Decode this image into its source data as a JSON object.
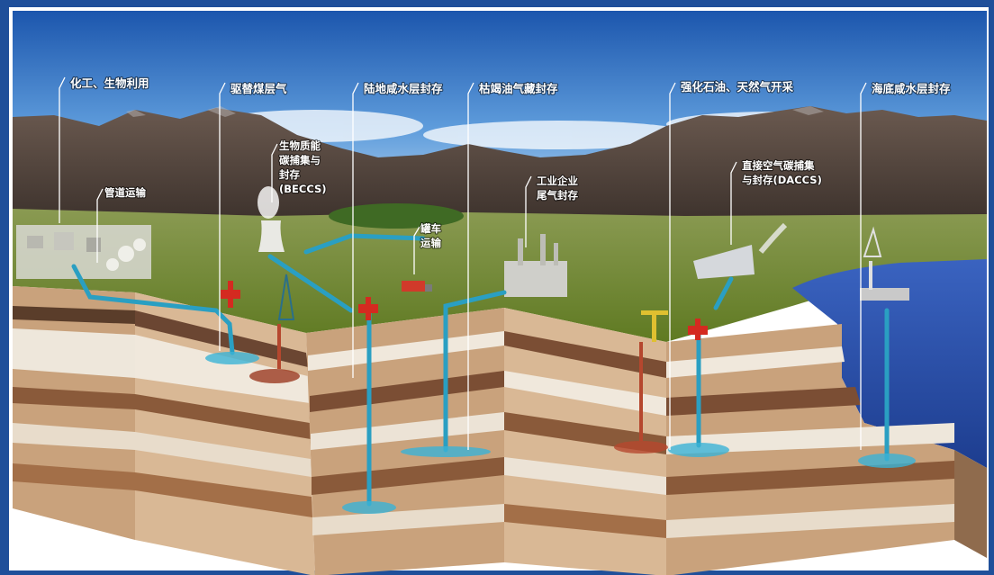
{
  "labels": {
    "chemical_bio_use": "化工、生物利用",
    "ecbm": "驱替煤层气",
    "onshore_saline": "陆地咸水层封存",
    "depleted_oil_gas": "枯竭油气藏封存",
    "eor_egr": "强化石油、天然气开采",
    "offshore_saline": "海底咸水层封存",
    "beccs_lines": [
      "生物质能",
      "碳捕集与",
      "封存",
      "(BECCS)"
    ],
    "pipeline": "管道运输",
    "tanker_lines": [
      "罐车",
      "运输"
    ],
    "industrial_lines": [
      "工业企业",
      "尾气封存"
    ],
    "daccs_lines": [
      "直接空气碳捕集",
      "与封存(DACCS)"
    ]
  },
  "colors": {
    "frame": "#1f4f9a",
    "sky_top": "#1f5fb8",
    "sky_bottom": "#8fbde8",
    "mountain": "#5a4a40",
    "grass": "#6f8a2e",
    "co2_pipe": "#2a9fc2",
    "wellhead": "#d42a20",
    "water": "#2e55b0",
    "rock_light": "#e8dccb",
    "rock_tan": "#c9a27c",
    "rock_brown": "#8a5a3a"
  }
}
